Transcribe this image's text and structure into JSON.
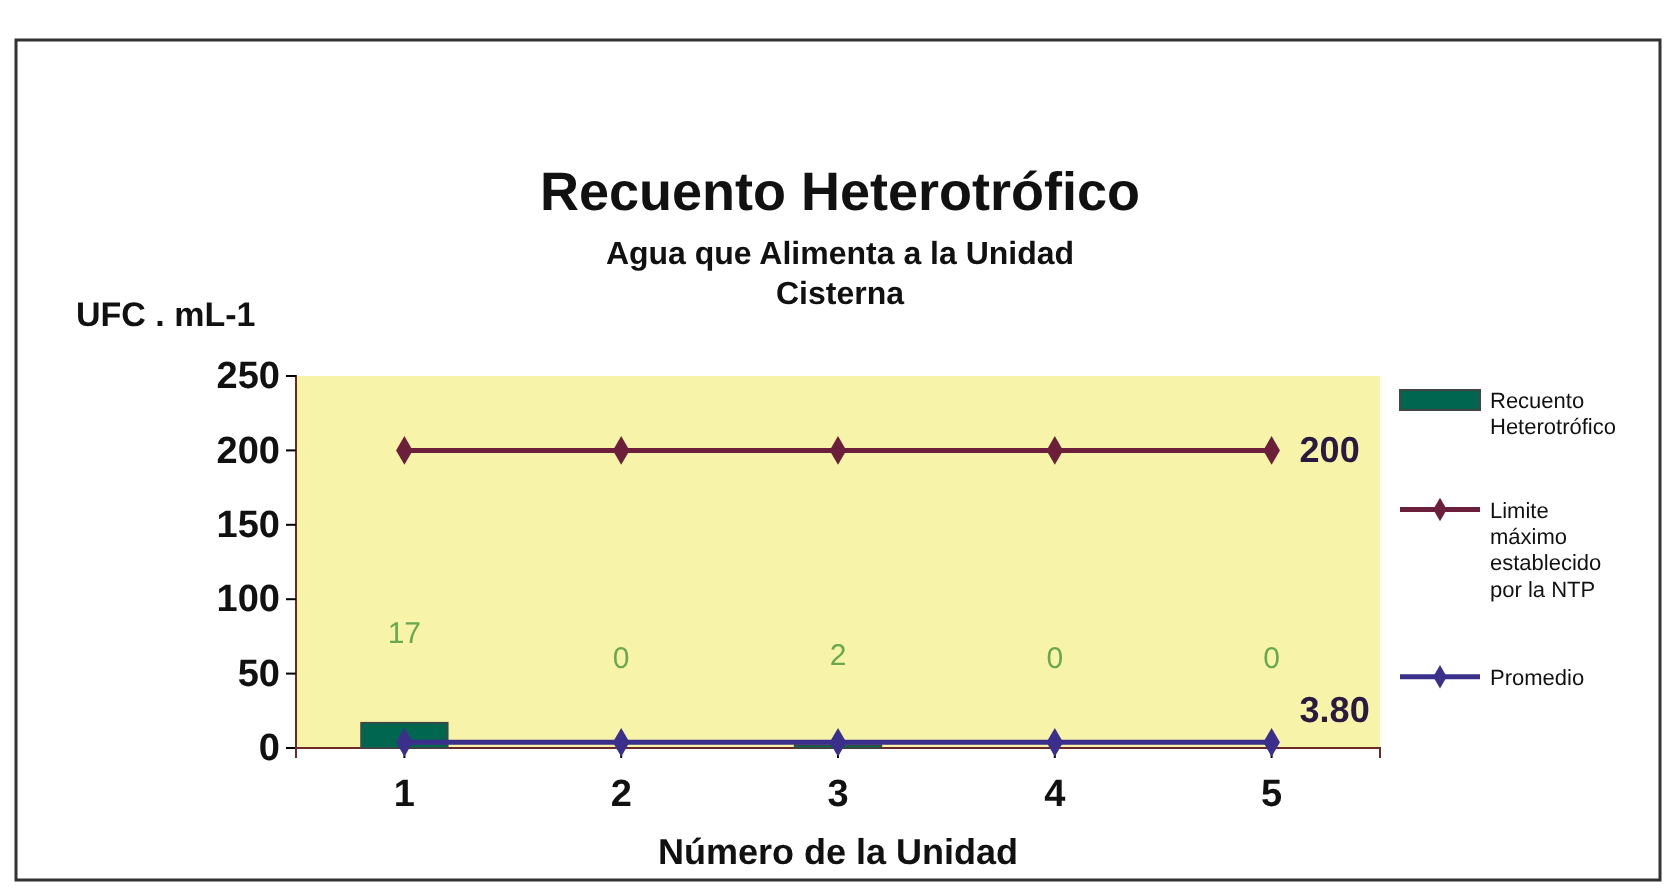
{
  "chart_data": {
    "type": "bar",
    "title": "Recuento Heterotrófico",
    "subtitle": "Agua que Alimenta a la Unidad Cisterna",
    "ylabel": "UFC . mL-1",
    "xlabel": "Número de la Unidad",
    "categories": [
      "1",
      "2",
      "3",
      "4",
      "5"
    ],
    "series": [
      {
        "name": "Recuento Heterotrófico",
        "color": "#00664f",
        "values": [
          17,
          0,
          2,
          0,
          0
        ],
        "value_labels": [
          "17",
          "0",
          "2",
          "0",
          "0"
        ]
      },
      {
        "name": "Limite máximo establecido por la NTP",
        "type": "line",
        "color": "#6b1f3a",
        "values": [
          200,
          200,
          200,
          200,
          200
        ],
        "value_labels": [
          null,
          null,
          null,
          null,
          "200"
        ]
      },
      {
        "name": "Promedio",
        "type": "line",
        "color": "#3b2f8c",
        "values": [
          3.8,
          3.8,
          3.8,
          3.8,
          3.8
        ],
        "value_labels": [
          null,
          null,
          null,
          null,
          "3.80"
        ]
      }
    ],
    "ylim": [
      0,
      250
    ],
    "yticks": [
      0,
      50,
      100,
      150,
      200,
      250
    ],
    "grid": false,
    "legend": "right",
    "marker": "diamond",
    "line_style": "solid"
  }
}
